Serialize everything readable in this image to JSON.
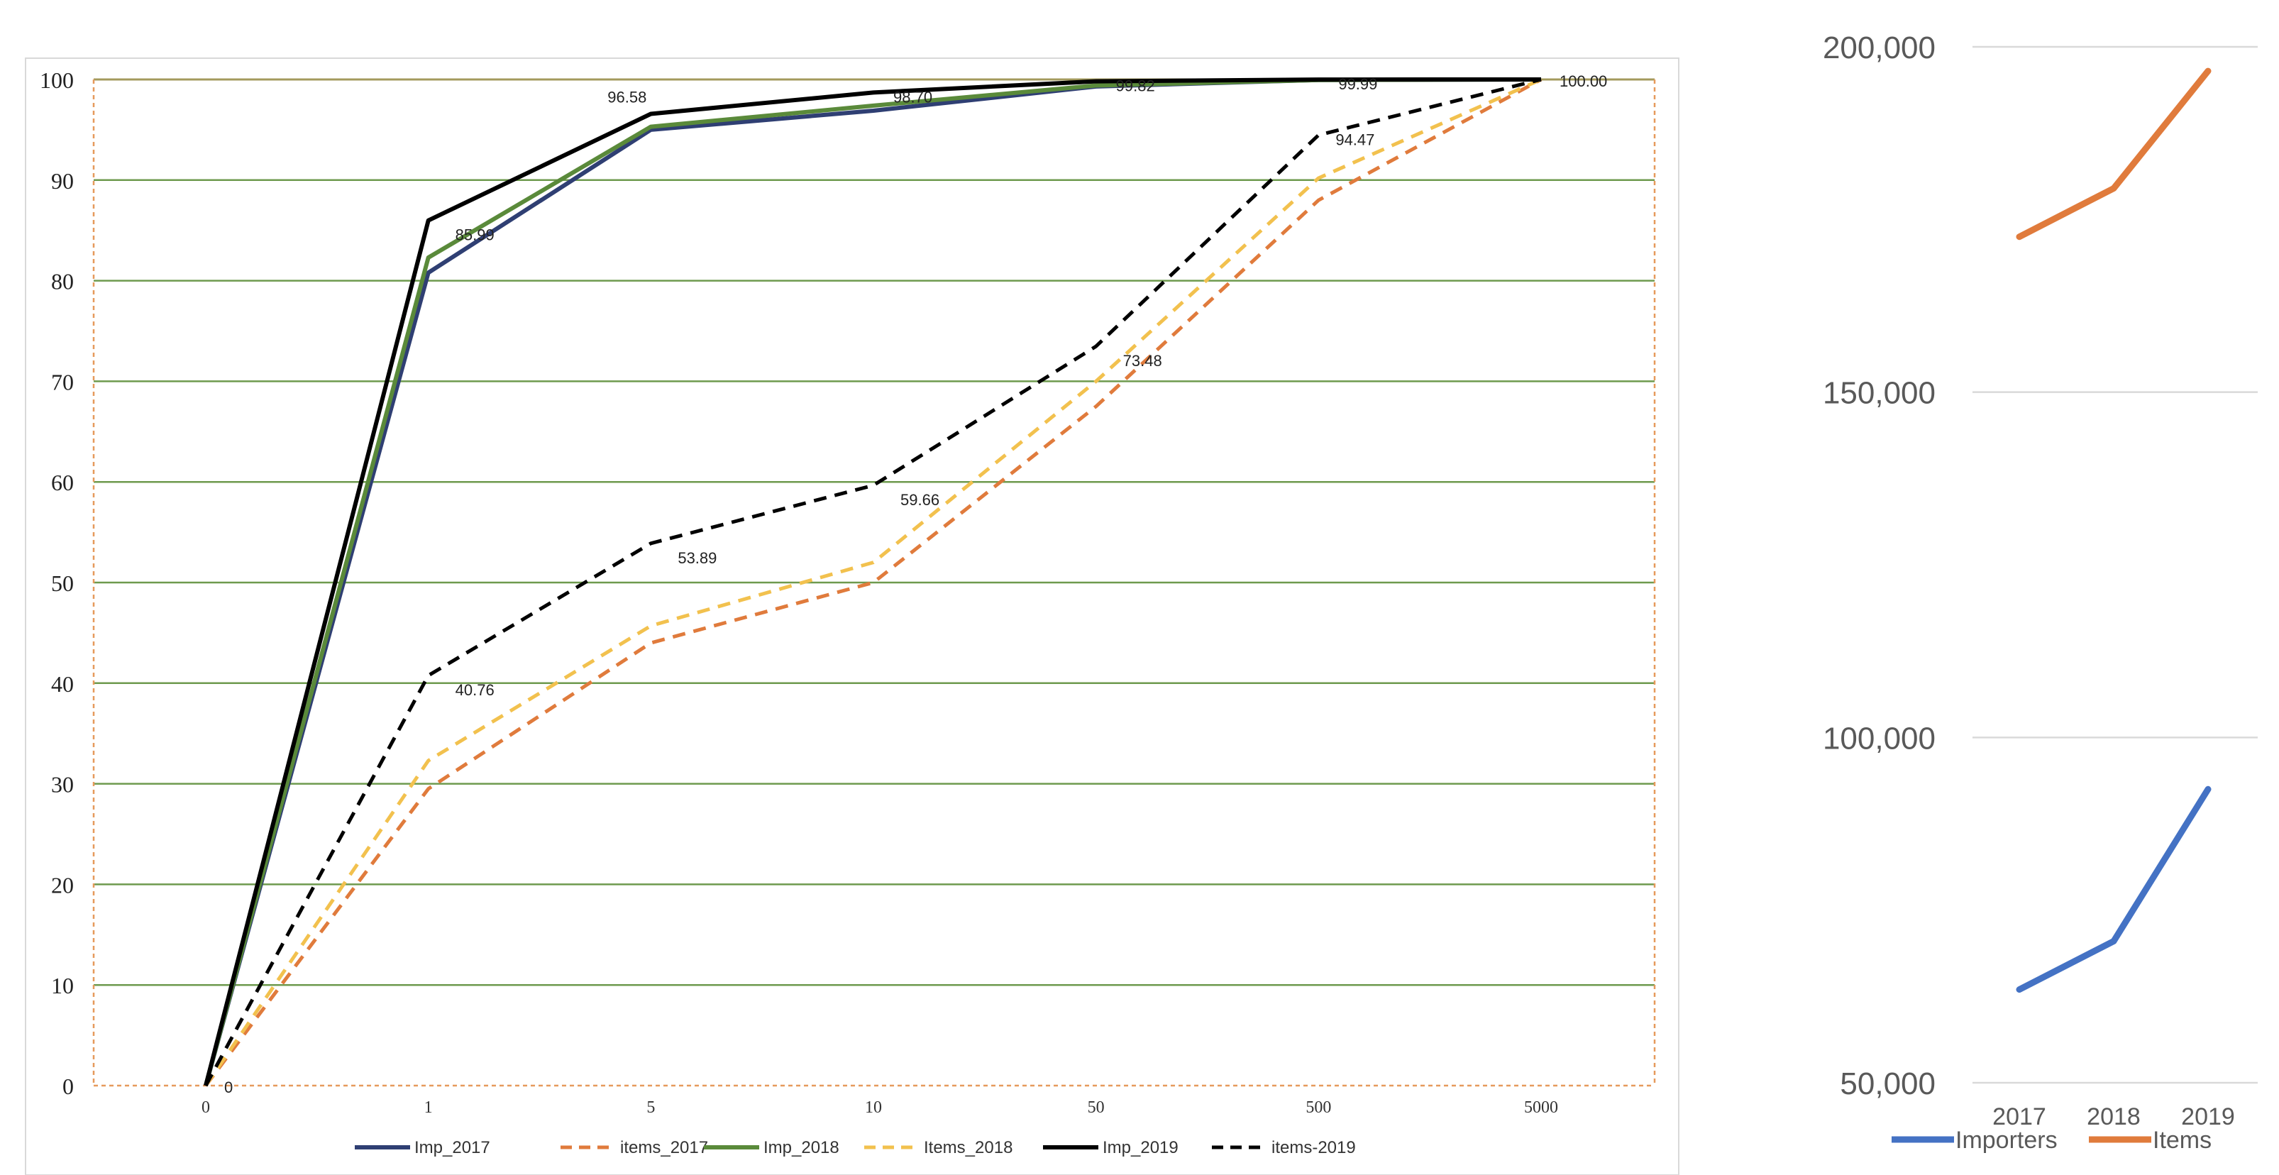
{
  "chart_data": [
    {
      "type": "line",
      "categories": [
        "0",
        "1",
        "5",
        "10",
        "50",
        "500",
        "5000"
      ],
      "ylim": [
        0,
        100
      ],
      "yticks": [
        0,
        10,
        20,
        30,
        40,
        50,
        60,
        70,
        80,
        90,
        100
      ],
      "grid": true,
      "legend": "bottom",
      "series": [
        {
          "name": "Imp_2017",
          "values": [
            0,
            80.8,
            95.0,
            96.9,
            99.3,
            99.95,
            100
          ],
          "color": "#2f3f73",
          "dash": false
        },
        {
          "name": "items_2017",
          "values": [
            0,
            29.5,
            44.0,
            50.0,
            67.5,
            88.0,
            100
          ],
          "color": "#e07b3c",
          "dash": true
        },
        {
          "name": "Imp_2018",
          "values": [
            0,
            82.3,
            95.3,
            97.4,
            99.4,
            99.95,
            100
          ],
          "color": "#5a8a3a",
          "dash": false
        },
        {
          "name": "Items_2018",
          "values": [
            0,
            32.3,
            45.7,
            52.0,
            70.0,
            90.2,
            100
          ],
          "color": "#f2c14e",
          "dash": true
        },
        {
          "name": "Imp_2019",
          "values": [
            0,
            85.99,
            96.58,
            98.7,
            99.82,
            99.99,
            100.0
          ],
          "color": "#000000",
          "dash": false
        },
        {
          "name": "items-2019",
          "values": [
            0,
            40.76,
            53.89,
            59.66,
            73.48,
            94.47,
            100
          ],
          "color": "#000000",
          "dash": true
        }
      ],
      "data_labels": [
        {
          "category": "0",
          "value": 0,
          "text": "0"
        },
        {
          "category": "1",
          "value": 85.99,
          "text": "85.99"
        },
        {
          "category": "5",
          "value": 96.58,
          "text": "96.58"
        },
        {
          "category": "10",
          "value": 98.7,
          "text": "98.70"
        },
        {
          "category": "50",
          "value": 99.82,
          "text": "99.82"
        },
        {
          "category": "500",
          "value": 99.99,
          "text": "99.99"
        },
        {
          "category": "5000",
          "value": 100.0,
          "text": "100.00"
        },
        {
          "category": "1",
          "value": 40.76,
          "text": "40.76"
        },
        {
          "category": "5",
          "value": 53.89,
          "text": "53.89"
        },
        {
          "category": "10",
          "value": 59.66,
          "text": "59.66"
        },
        {
          "category": "50",
          "value": 73.48,
          "text": "73.48"
        },
        {
          "category": "500",
          "value": 94.47,
          "text": "94.47"
        }
      ]
    },
    {
      "type": "line",
      "categories": [
        "2017",
        "2018",
        "2019"
      ],
      "ylim": [
        50000,
        200000
      ],
      "yticks": [
        50000,
        100000,
        150000,
        200000
      ],
      "ytick_labels": [
        "50,000",
        "100,000",
        "150,000",
        "200,000"
      ],
      "grid": true,
      "legend": "bottom",
      "series": [
        {
          "name": "Importers",
          "values": [
            63500,
            70500,
            92500
          ],
          "color": "#4472c4"
        },
        {
          "name": "Items",
          "values": [
            172500,
            179500,
            196500
          ],
          "color": "#e07b3c"
        }
      ]
    }
  ]
}
